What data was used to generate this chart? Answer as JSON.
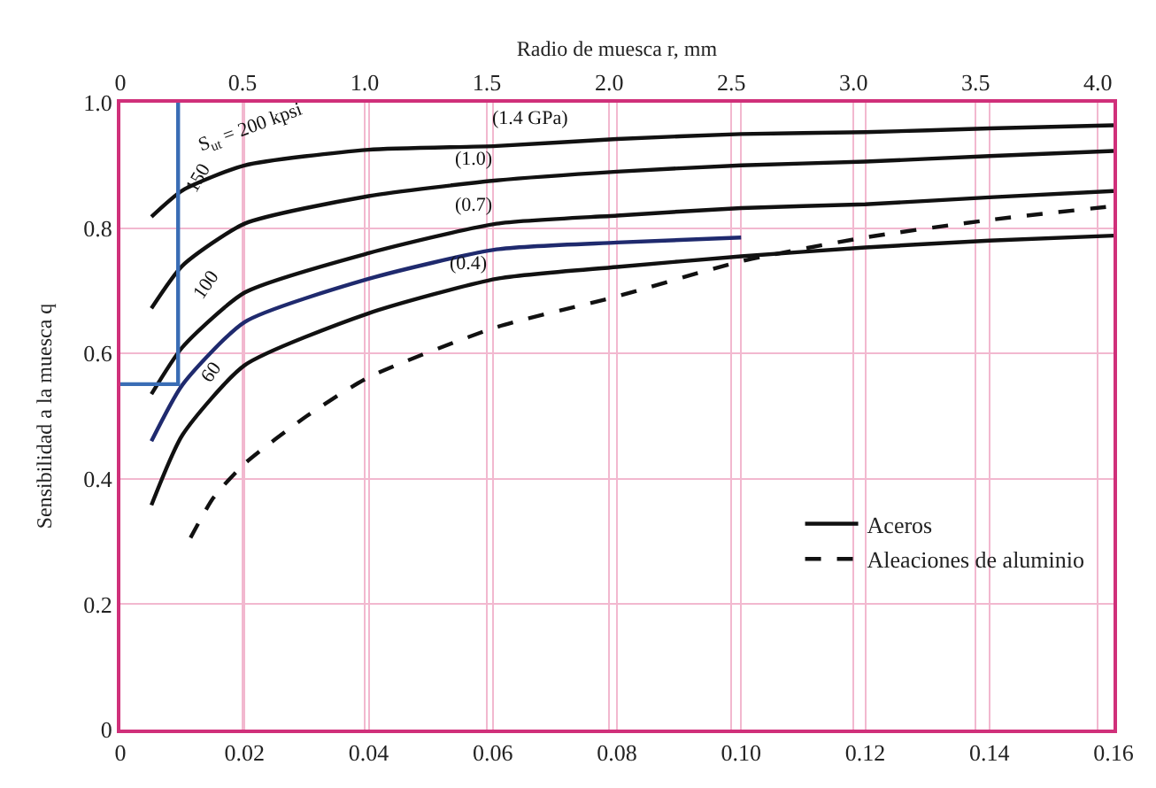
{
  "chart_data": {
    "type": "line",
    "x2label": "Radio de muesca r, mm",
    "ylabel": "Sensibilidad a la muesca q",
    "xlim": [
      0,
      0.16
    ],
    "xticks": [
      0,
      0.02,
      0.04,
      0.06,
      0.08,
      {
        "value": 0.1,
        "label": "0.10"
      },
      0.12,
      0.14,
      0.16
    ],
    "x2lim": [
      0,
      4.064
    ],
    "x2ticks": [
      0,
      0.5,
      {
        "value": 1,
        "label": "1.0"
      },
      1.5,
      {
        "value": 2,
        "label": "2.0"
      },
      2.5,
      {
        "value": 3,
        "label": "3.0"
      },
      3.5,
      {
        "value": 4,
        "label": "4.0"
      }
    ],
    "ylim": [
      0,
      1
    ],
    "yticks": [
      0,
      0.2,
      0.4,
      0.6,
      0.8,
      {
        "value": 1,
        "label": "1.0"
      }
    ],
    "grid": true,
    "legend": "right",
    "series": [
      {
        "name": "Aceros",
        "color": "#111111",
        "line_style": "solid",
        "x": [
          0.005,
          0.01,
          0.02,
          0.04,
          0.0606,
          0.08,
          0.1,
          0.12,
          0.14,
          0.16
        ],
        "values": [
          0.818,
          0.86,
          0.9,
          0.925,
          0.931,
          0.942,
          0.95,
          0.953,
          0.959,
          0.964
        ]
      },
      {
        "color": "#111111",
        "line_style": "solid",
        "x": [
          0.005,
          0.01,
          0.02,
          0.04,
          0.0606,
          0.08,
          0.1,
          0.12,
          0.14,
          0.16
        ],
        "values": [
          0.672,
          0.74,
          0.807,
          0.851,
          0.876,
          0.89,
          0.9,
          0.906,
          0.915,
          0.923
        ]
      },
      {
        "color": "#111111",
        "line_style": "solid",
        "x": [
          0.005,
          0.01,
          0.02,
          0.04,
          0.0606,
          0.08,
          0.1,
          0.12,
          0.14,
          0.16
        ],
        "values": [
          0.535,
          0.61,
          0.697,
          0.76,
          0.807,
          0.82,
          0.832,
          0.838,
          0.849,
          0.859
        ]
      },
      {
        "color": "#1f2a6e",
        "line_style": "solid",
        "x": [
          0.005,
          0.01,
          0.02,
          0.04,
          0.0606,
          0.08,
          0.1
        ],
        "values": [
          0.46,
          0.55,
          0.65,
          0.719,
          0.766,
          0.777,
          0.785
        ]
      },
      {
        "color": "#111111",
        "line_style": "solid",
        "x": [
          0.005,
          0.01,
          0.02,
          0.04,
          0.0606,
          0.08,
          0.1,
          0.12,
          0.14,
          0.16
        ],
        "values": [
          0.358,
          0.47,
          0.581,
          0.664,
          0.719,
          0.738,
          0.755,
          0.769,
          0.78,
          0.788
        ]
      },
      {
        "name": "Aleaciones de aluminio",
        "color": "#111111",
        "line_style": "dashed",
        "x": [
          0.0113,
          0.015,
          0.02,
          0.03,
          0.04,
          0.0606,
          0.08,
          0.1,
          0.12,
          0.14,
          0.16
        ],
        "values": [
          0.306,
          0.37,
          0.424,
          0.5,
          0.562,
          0.642,
          0.691,
          0.747,
          0.785,
          0.813,
          0.835
        ]
      },
      {
        "color": "#3a6db5",
        "line_style": "solid",
        "x": [
          0,
          0.0093,
          0.0093
        ],
        "values": [
          0.551,
          0.551,
          1.0
        ]
      }
    ],
    "annotations": [
      "(1.4 GPa)",
      "(1.0)",
      "(0.7)",
      "(0.4)",
      "S$_{ut}$ = 200 kpsi",
      "150",
      "100",
      "60"
    ]
  }
}
